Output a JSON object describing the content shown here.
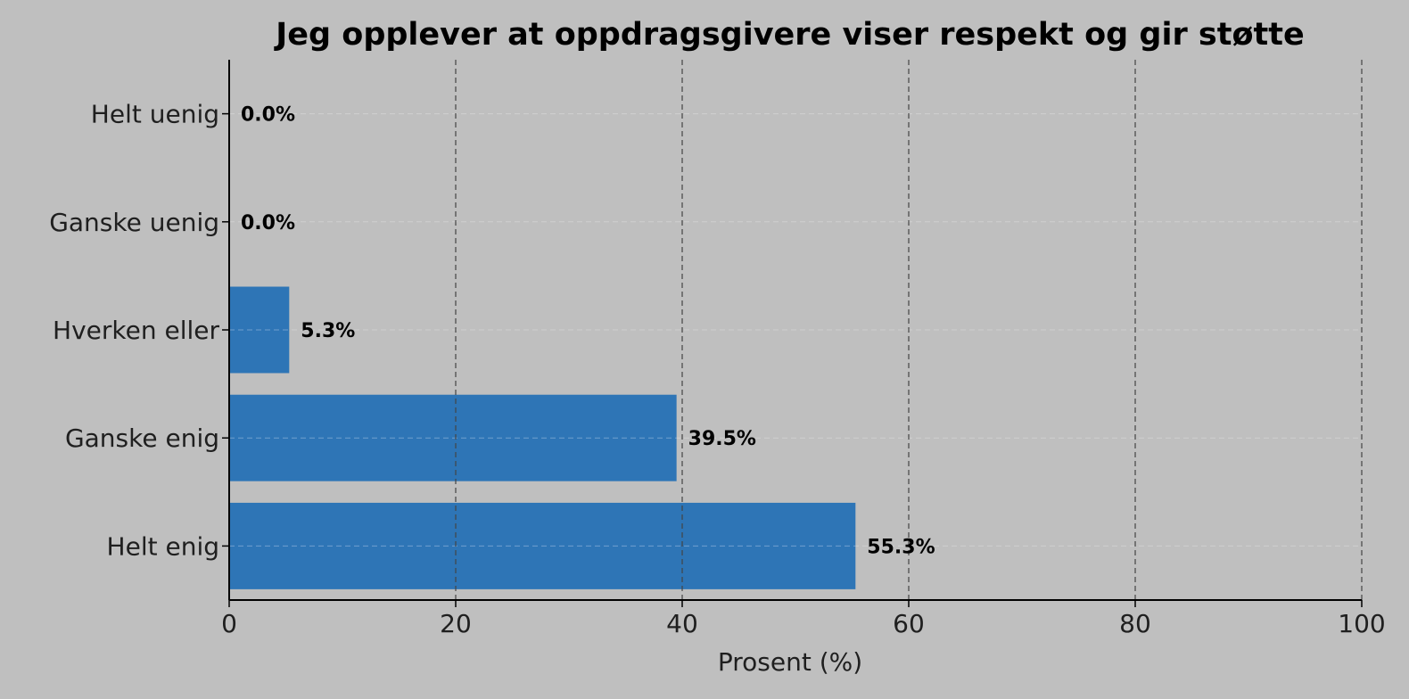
{
  "chart_data": {
    "type": "bar",
    "orientation": "horizontal",
    "title": "Jeg opplever at oppdragsgivere viser respekt og gir støtte",
    "xlabel": "Prosent (%)",
    "ylabel": "",
    "xlim": [
      0,
      100
    ],
    "xticks": [
      0,
      20,
      40,
      60,
      80,
      100
    ],
    "categories": [
      "Helt uenig",
      "Ganske uenig",
      "Hverken eller",
      "Ganske enig",
      "Helt enig"
    ],
    "values": [
      0.0,
      0.0,
      5.3,
      39.5,
      55.3
    ],
    "value_labels": [
      "0.0%",
      "0.0%",
      "5.3%",
      "39.5%",
      "55.3%"
    ],
    "grid": {
      "x": true,
      "y": true,
      "style": "dashed"
    },
    "colors": {
      "background": "#bfbfbf",
      "bar": "#2e75b6",
      "text": "#000000"
    }
  }
}
